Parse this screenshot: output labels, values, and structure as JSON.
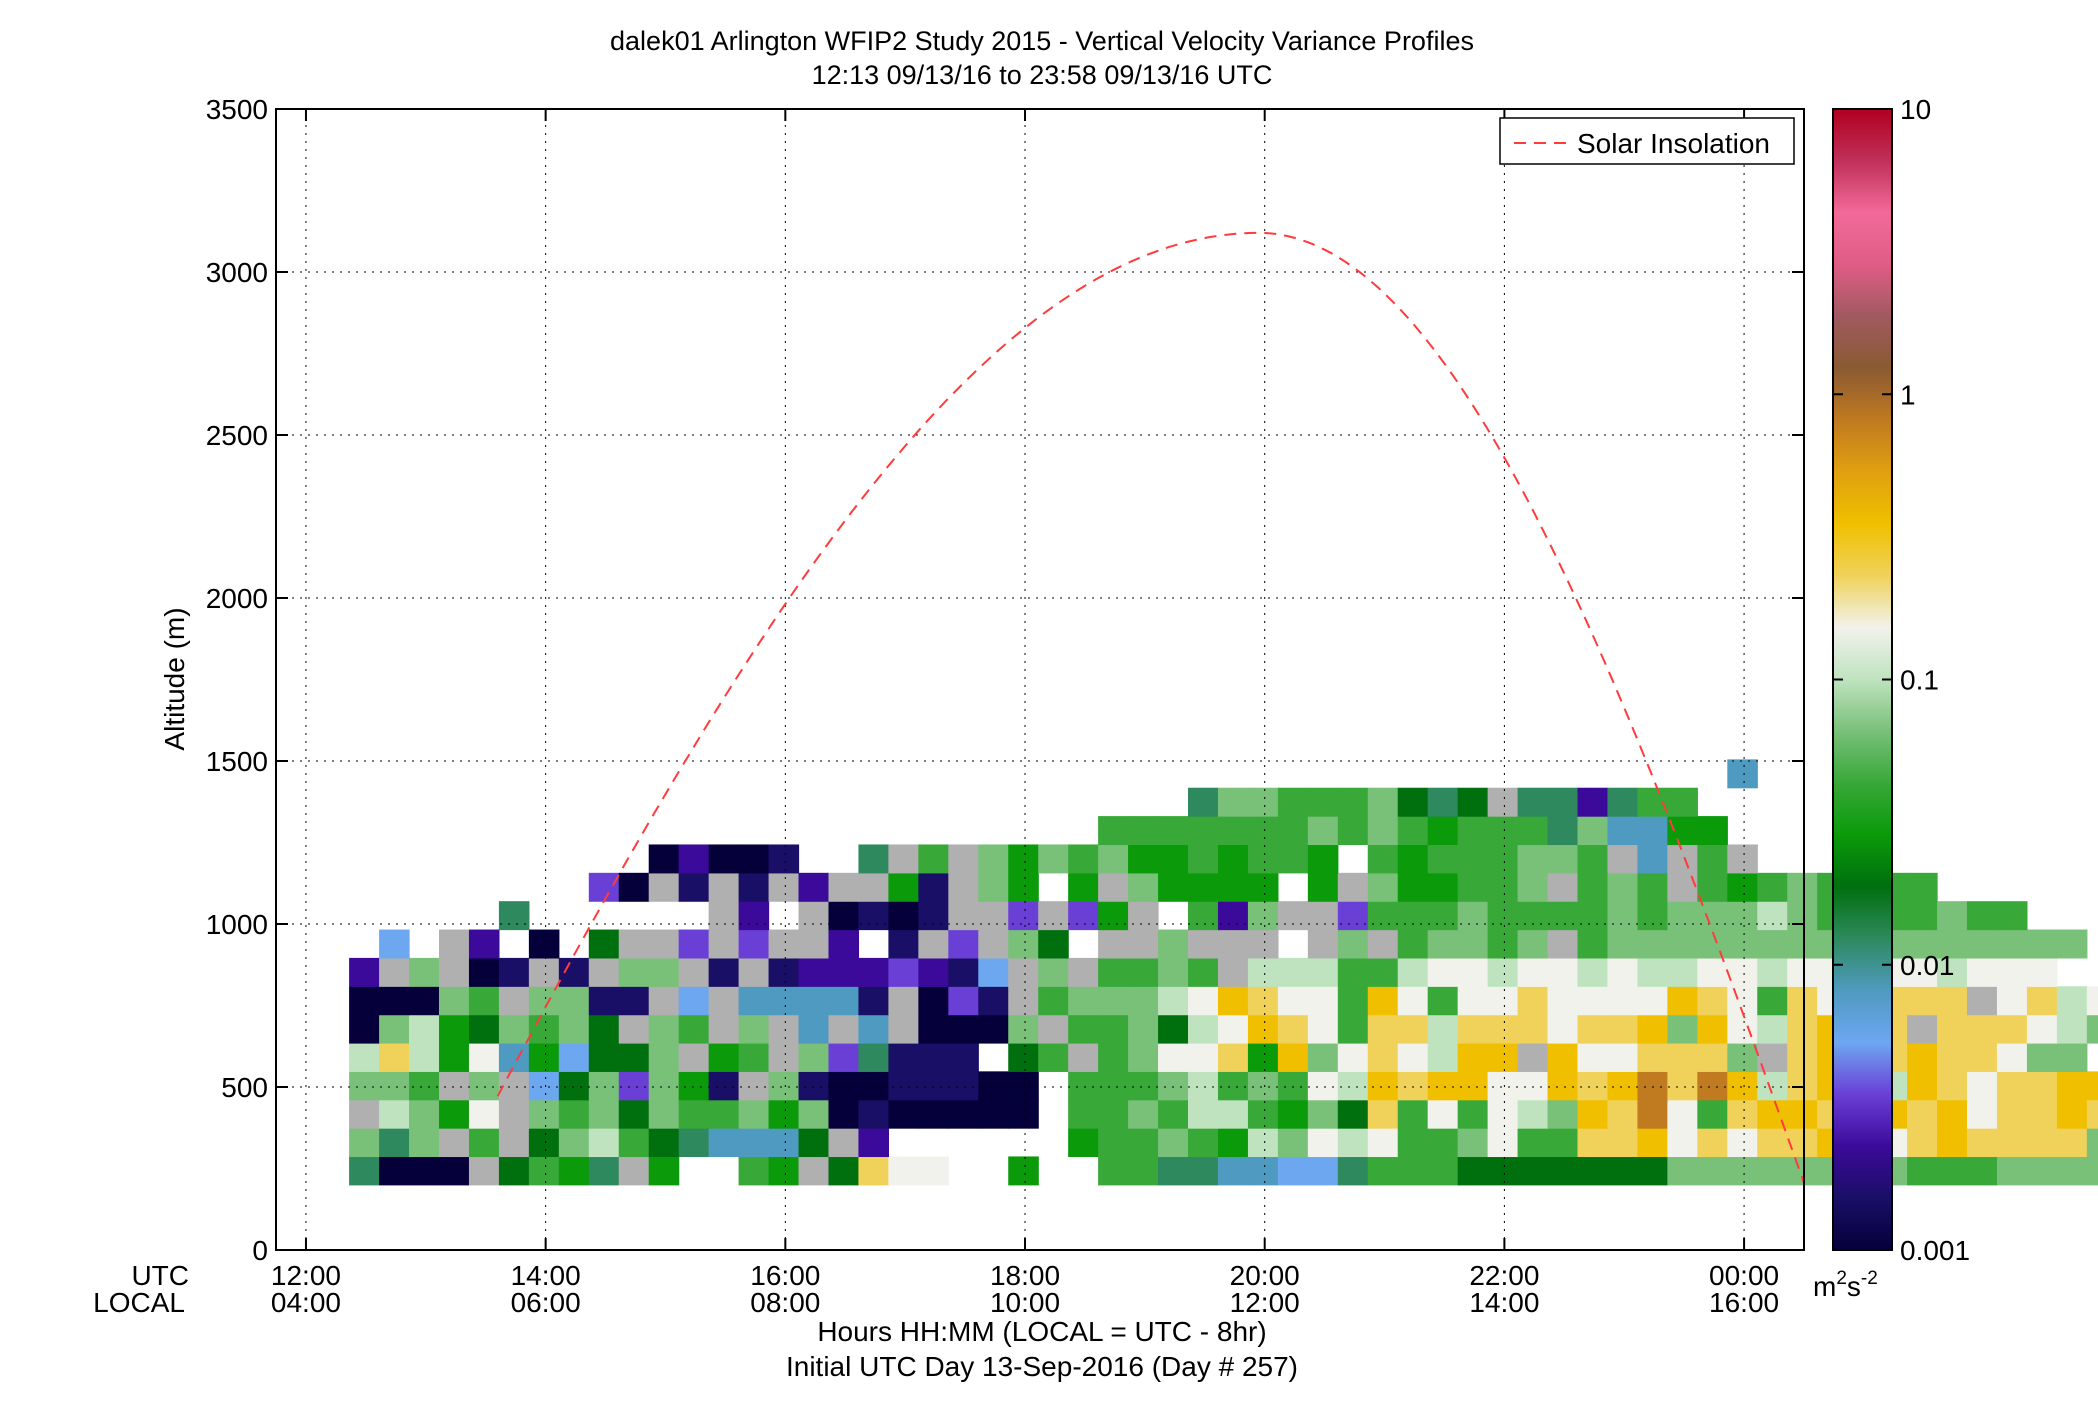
{
  "chart_data": {
    "type": "heatmap",
    "title": "dalek01 Arlington WFIP2 Study 2015 - Vertical Velocity Variance Profiles",
    "subtitle": "12:13 09/13/16 to 23:58 09/13/16  UTC",
    "ylabel": "Altitude (m)",
    "xlabel": "Hours HH:MM  (LOCAL = UTC - 8hr)",
    "xlabel2": "Initial UTC Day 13-Sep-2016 (Day # 257)",
    "row_label_utc": "UTC",
    "row_label_local": "LOCAL",
    "xlim_hours_utc": [
      11.75,
      24.5
    ],
    "ylim": [
      0,
      3500
    ],
    "grid": true,
    "x_ticks": [
      {
        "hour": 12,
        "utc": "12:00",
        "local": "04:00"
      },
      {
        "hour": 14,
        "utc": "14:00",
        "local": "06:00"
      },
      {
        "hour": 16,
        "utc": "16:00",
        "local": "08:00"
      },
      {
        "hour": 18,
        "utc": "18:00",
        "local": "10:00"
      },
      {
        "hour": 20,
        "utc": "20:00",
        "local": "12:00"
      },
      {
        "hour": 22,
        "utc": "22:00",
        "local": "14:00"
      },
      {
        "hour": 24,
        "utc": "00:00",
        "local": "16:00"
      }
    ],
    "y_ticks": [
      "0",
      "500",
      "1000",
      "1500",
      "2000",
      "2500",
      "3000",
      "3500"
    ],
    "colorbar": {
      "scale": "log",
      "range": [
        0.001,
        10
      ],
      "tick_labels": [
        "0.001",
        "0.01",
        "0.1",
        "1",
        "10"
      ],
      "unit_label": "m",
      "unit_sup1": "2",
      "unit_mid": "s",
      "unit_sup2": "-2",
      "colors": [
        "#05003a",
        "#1a0f66",
        "#3c0a9a",
        "#6a3fd6",
        "#6da7f0",
        "#4f9ac1",
        "#2e8a5e",
        "#006f0e",
        "#0a9a0a",
        "#38a838",
        "#79c079",
        "#bfe3bf",
        "#f2f2ec",
        "#f0d25a",
        "#f0c000",
        "#e0a010",
        "#c07a20",
        "#8a5a32",
        "#a05a60",
        "#e05d86",
        "#f26a9a",
        "#c0305a",
        "#b00020"
      ]
    },
    "legend": {
      "entries": [
        "Solar Insolation"
      ],
      "position": "top-right"
    },
    "heatmap": {
      "x_start_hour": 12.36,
      "x_step_hour": 0.25,
      "y_start_m": 200,
      "y_step_m": 87,
      "values": [
        "6000.7986.8  98.7DCC  8  9966554469997777777AAAAAAAA999AAAAABBBAAAAA9",
        "A6A.9.7AB9765557.2      899A98BACBC99AC99DDECDCDDEBCDEDDDDAAACB9",
        ".BA8C.A9A7A99A8A0100000 99A9BB98A7D9C9CBAEDFC9DEEDAEDECDDEDDCA",
        "AA9.A.47A3A81.A10011100 999AB9A9CBEDEECCEDEFDFEBDEEBEDCDDEEA",
        "BDB8C58477A.89.A36111 79.9ACCD8EACDCBEE.ECCDDDA.DEEDEDDCAA",
        "0AB87A9A7.A9.A.5.5.000A.99A7BCEDC9DDBDDDCDDEAECBDEDD.DDDCBA",
        "000A9.AA11.4.55551.031.9AAABCEDCC9EC9CCDCCCCEDC9DCDDDD.CDBCB",
        "2.A.01.1.AA.1.12223214.A.99A9.BBB99BCCBCCBCBBCCBCCCCCBCCC",
        " 4 .2 0 7..3.3..2 1.3.A7 ..A... .A.9AA9A.9AAAAAAAAAAAAAAAA",
        "     6      .2 .0101..3.38. 92A..3999A9999A9AAABA9999A99",
        "        30.1.1.2..81.A8 8.A8888 8.A8899A.9A9.989A9999",
        "          02001  6.9.A8A9A8898998 98999AA9.5.9.",
        "                         9999999A9A989996A5588",
        "                            6AA999A767.662699",
        "                                              5"
      ]
    }
  }
}
